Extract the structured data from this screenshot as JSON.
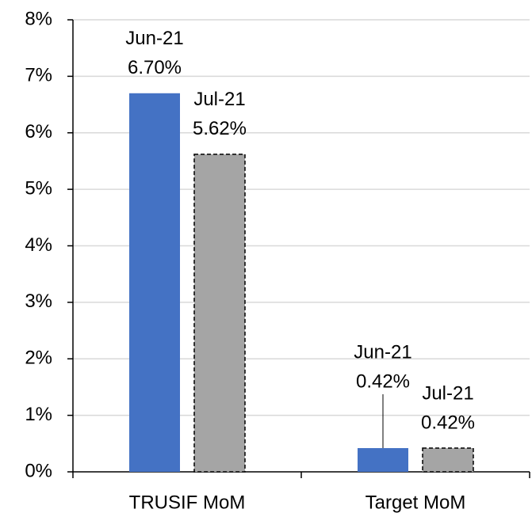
{
  "chart_data": {
    "type": "bar",
    "categories": [
      "TRUSIF MoM",
      "Target MoM"
    ],
    "series": [
      {
        "name": "Jun-21",
        "color": "#4472c4",
        "values": [
          6.7,
          0.42
        ],
        "value_labels": [
          "6.70%",
          "0.42%"
        ]
      },
      {
        "name": "Jul-21",
        "color": "#a5a5a5",
        "values": [
          5.62,
          0.42
        ],
        "value_labels": [
          "5.62%",
          "0.42%"
        ]
      }
    ],
    "ylim": [
      0,
      8
    ],
    "yticks": [
      {
        "value": 0,
        "label": "0%"
      },
      {
        "value": 1,
        "label": "1%"
      },
      {
        "value": 2,
        "label": "2%"
      },
      {
        "value": 3,
        "label": "3%"
      },
      {
        "value": 4,
        "label": "4%"
      },
      {
        "value": 5,
        "label": "5%"
      },
      {
        "value": 6,
        "label": "6%"
      },
      {
        "value": 7,
        "label": "7%"
      },
      {
        "value": 8,
        "label": "8%"
      }
    ],
    "grid": true
  }
}
